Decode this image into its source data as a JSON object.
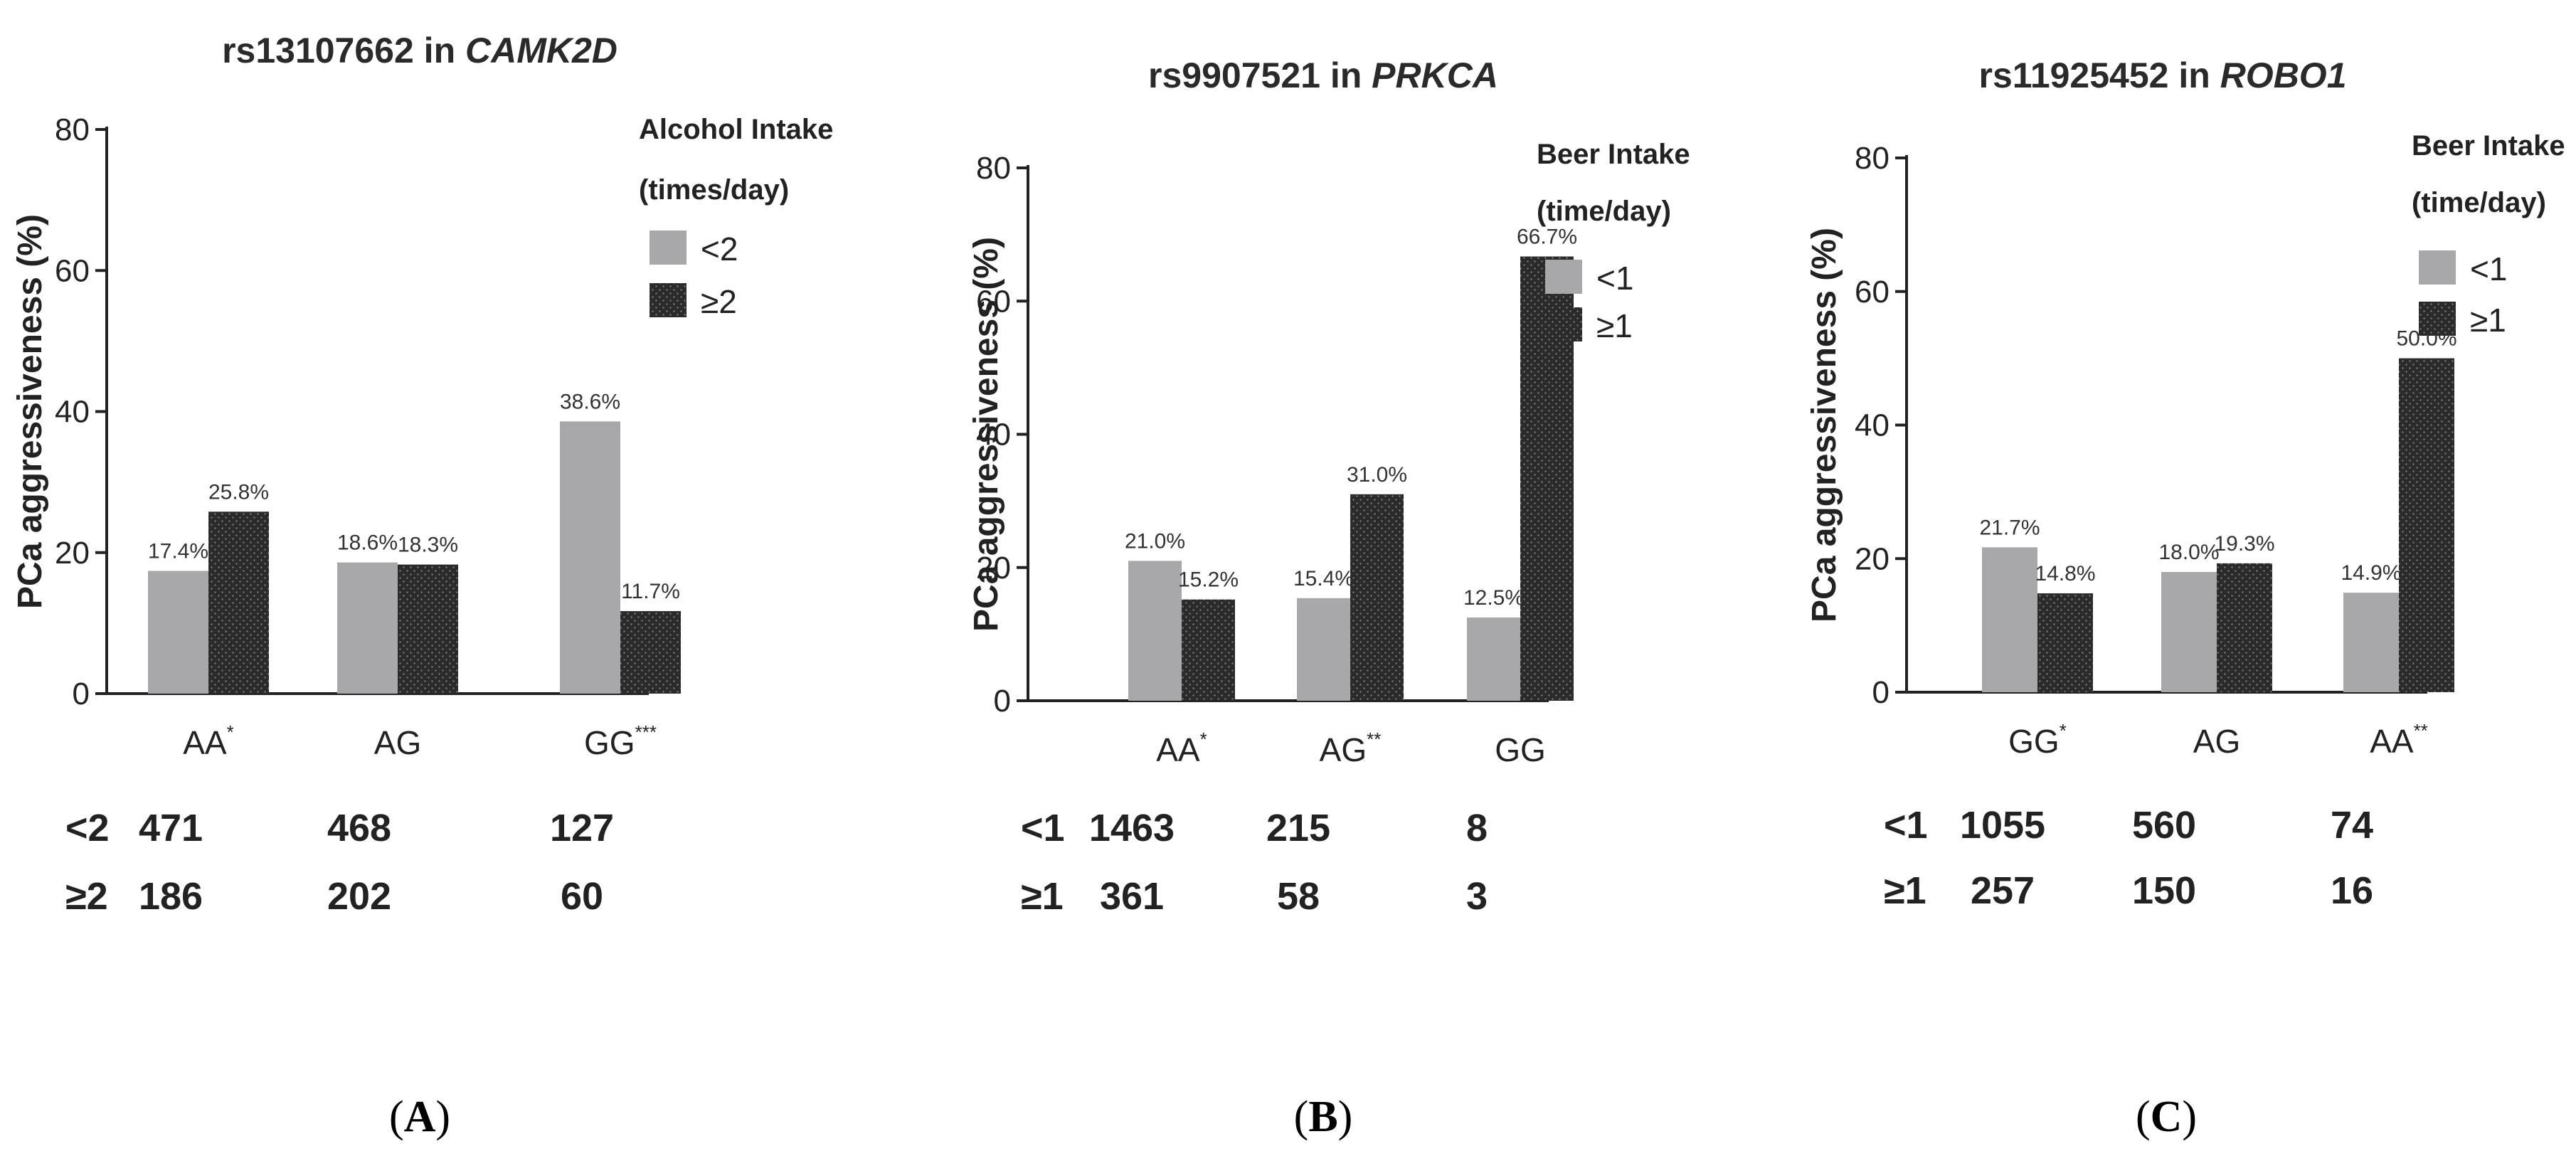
{
  "chart_data": [
    {
      "type": "bar",
      "title_prefix": "rs13107662 in ",
      "title_gene": "CAMK2D",
      "ylabel": "PCa aggressiveness (%)",
      "ylim": [
        0,
        80
      ],
      "yticks": [
        "0",
        "20",
        "40",
        "60",
        "80"
      ],
      "categories": [
        "AA",
        "AG",
        "GG"
      ],
      "category_sup": [
        "*",
        "",
        "***"
      ],
      "legend_title": [
        "Alcohol Intake",
        "(times/day)"
      ],
      "series": [
        {
          "name": "<2",
          "color": "#a8a8aa",
          "pattern": "solid",
          "values": [
            17.4,
            18.6,
            38.6
          ],
          "labels": [
            "17.4%",
            "18.6%",
            "38.6%"
          ]
        },
        {
          "name": "≥2",
          "color": "#2b2b2b",
          "pattern": "dotted",
          "values": [
            25.8,
            18.3,
            11.7
          ],
          "labels": [
            "25.8%",
            "18.3%",
            "11.7%"
          ]
        }
      ],
      "counts": [
        {
          "label": "<2",
          "values": [
            "471",
            "468",
            "127"
          ]
        },
        {
          "label": "≥2",
          "values": [
            "186",
            "202",
            "60"
          ]
        }
      ],
      "panel_open": "(",
      "panel_letter": "A",
      "panel_close": ")"
    },
    {
      "type": "bar",
      "title_prefix": "rs9907521 in ",
      "title_gene": "PRKCA",
      "ylabel": "PCa aggressiveness (%)",
      "ylim": [
        0,
        80
      ],
      "yticks": [
        "0",
        "20",
        "40",
        "60",
        "80"
      ],
      "categories": [
        "AA",
        "AG",
        "GG"
      ],
      "category_sup": [
        "*",
        "**",
        ""
      ],
      "legend_title": [
        "Beer Intake",
        "(time/day)"
      ],
      "series": [
        {
          "name": "<1",
          "color": "#a8a8aa",
          "pattern": "solid",
          "values": [
            21.0,
            15.4,
            12.5
          ],
          "labels": [
            "21.0%",
            "15.4%",
            "12.5%"
          ]
        },
        {
          "name": "≥1",
          "color": "#2b2b2b",
          "pattern": "dotted",
          "values": [
            15.2,
            31.0,
            66.7
          ],
          "labels": [
            "15.2%",
            "31.0%",
            "66.7%"
          ]
        }
      ],
      "counts": [
        {
          "label": "<1",
          "values": [
            "1463",
            "215",
            "8"
          ]
        },
        {
          "label": "≥1",
          "values": [
            "361",
            "58",
            "3"
          ]
        }
      ],
      "panel_open": "(",
      "panel_letter": "B",
      "panel_close": ")"
    },
    {
      "type": "bar",
      "title_prefix": "rs11925452 in ",
      "title_gene": "ROBO1",
      "ylabel": "PCa aggressiveness (%)",
      "ylim": [
        0,
        80
      ],
      "yticks": [
        "0",
        "20",
        "40",
        "60",
        "80"
      ],
      "categories": [
        "GG",
        "AG",
        "AA"
      ],
      "category_sup": [
        "*",
        "",
        "**"
      ],
      "legend_title": [
        "Beer Intake",
        "(time/day)"
      ],
      "series": [
        {
          "name": "<1",
          "color": "#a8a8aa",
          "pattern": "solid",
          "values": [
            21.7,
            18.0,
            14.9
          ],
          "labels": [
            "21.7%",
            "18.0%",
            "14.9%"
          ]
        },
        {
          "name": "≥1",
          "color": "#2b2b2b",
          "pattern": "dotted",
          "values": [
            14.8,
            19.3,
            50.0
          ],
          "labels": [
            "14.8%",
            "19.3%",
            "50.0%"
          ]
        }
      ],
      "counts": [
        {
          "label": "<1",
          "values": [
            "1055",
            "560",
            "74"
          ]
        },
        {
          "label": "≥1",
          "values": [
            "257",
            "150",
            "16"
          ]
        }
      ],
      "panel_open": "(",
      "panel_letter": "C",
      "panel_close": ")"
    }
  ]
}
